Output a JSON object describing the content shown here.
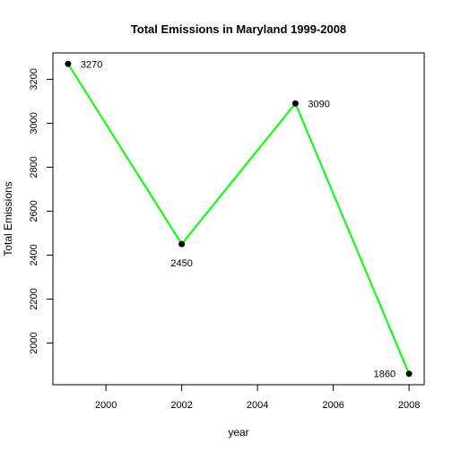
{
  "chart_data": {
    "type": "line",
    "title": "Total Emissions in Maryland 1999-2008",
    "xlabel": "year",
    "ylabel": "Total Emissions",
    "x": [
      1999,
      2002,
      2005,
      2008
    ],
    "series": [
      {
        "values": [
          3270,
          2450,
          3090,
          1860
        ],
        "labels": [
          "3270",
          "2450",
          "3090",
          "1860"
        ],
        "label_positions": [
          "right",
          "below",
          "right",
          "left"
        ],
        "line_color": "#00ff00",
        "marker_color": "#000000"
      }
    ],
    "xlim": [
      1998.6,
      2008.4
    ],
    "ylim": [
      1810,
      3320
    ],
    "x_ticks": [
      2000,
      2002,
      2004,
      2006,
      2008
    ],
    "x_tick_labels": [
      "2000",
      "2002",
      "2004",
      "2006",
      "2008"
    ],
    "y_ticks": [
      2000,
      2200,
      2400,
      2600,
      2800,
      3000,
      3200
    ],
    "y_tick_labels": [
      "2000",
      "2200",
      "2400",
      "2600",
      "2800",
      "3000",
      "3200"
    ],
    "grid": false,
    "legend": "none"
  }
}
